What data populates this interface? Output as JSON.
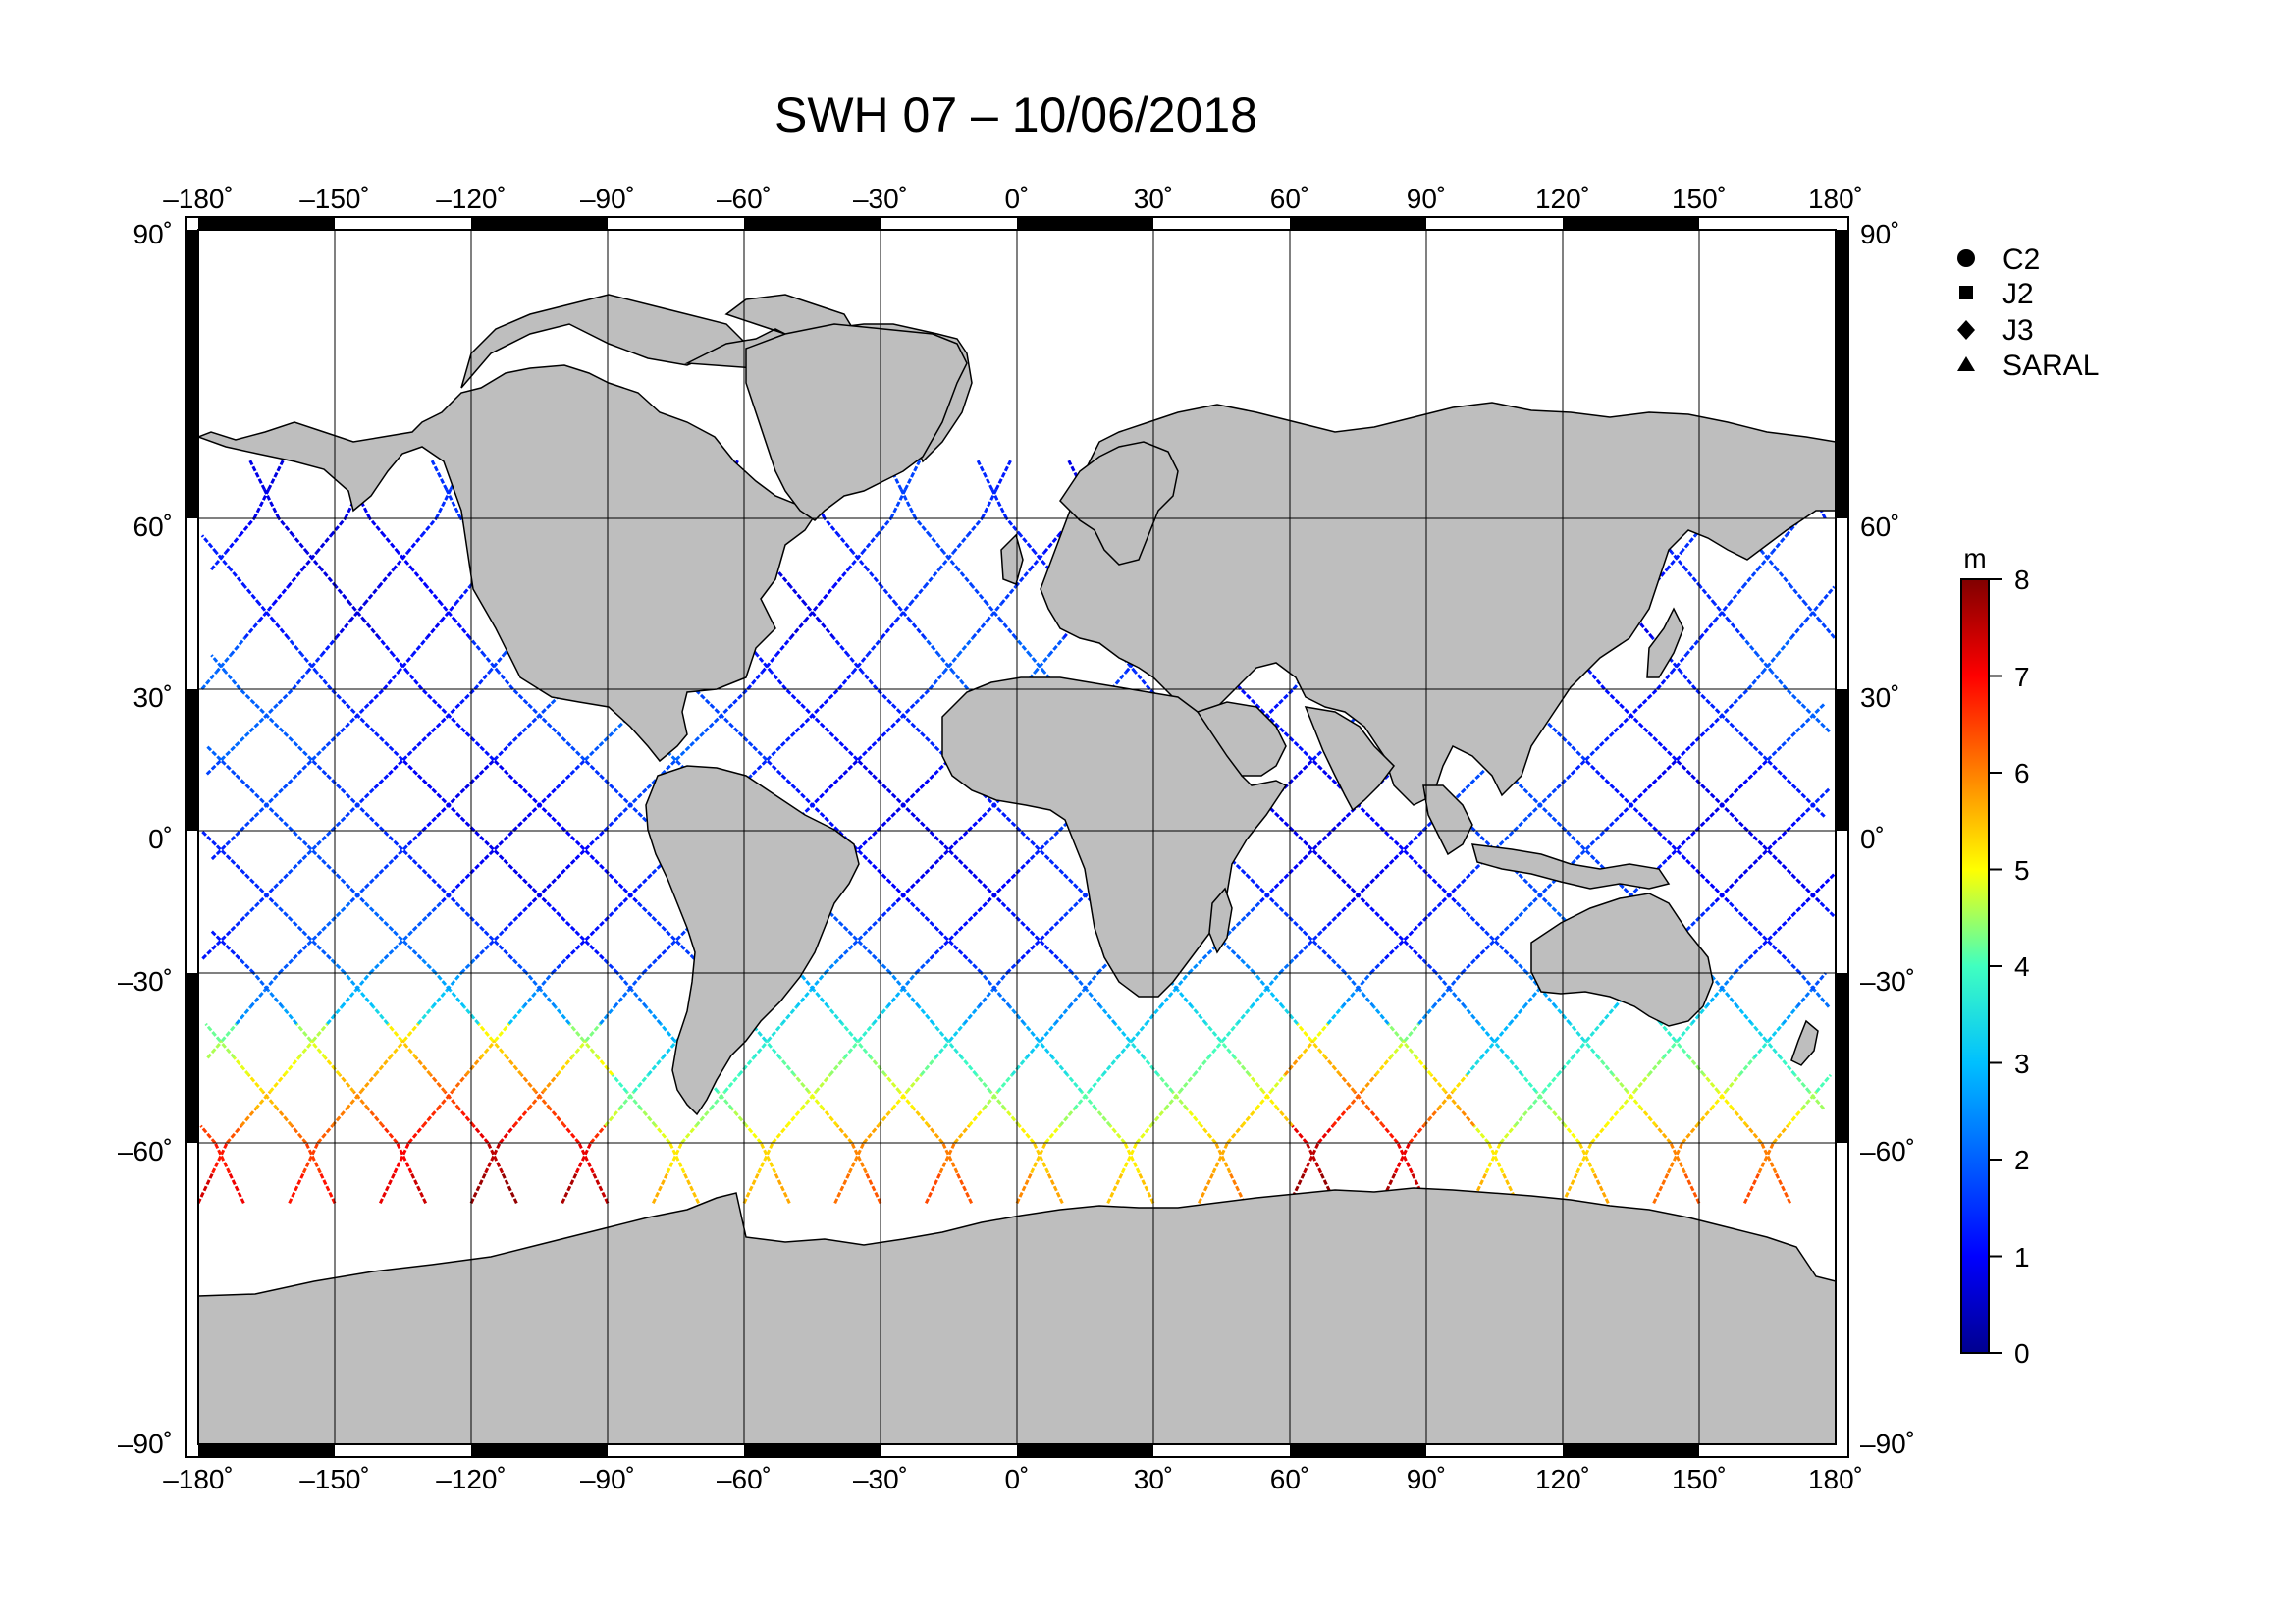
{
  "title": "SWH 07 – 10/06/2018",
  "map": {
    "lon_ticks": [
      "–180˚",
      "–150˚",
      "–120˚",
      "–90˚",
      "–60˚",
      "–30˚",
      "0˚",
      "30˚",
      "60˚",
      "90˚",
      "120˚",
      "150˚",
      "180˚"
    ],
    "lat_ticks_left": [
      "90˚",
      "60˚",
      "30˚",
      "0˚",
      "–30˚",
      "–60˚",
      "–90˚"
    ],
    "lat_ticks_right": [
      "90˚",
      "60˚",
      "30˚",
      "0˚",
      "–30˚",
      "–60˚",
      "–90˚"
    ],
    "land_color": "#bebebe",
    "grid_color": "#000000"
  },
  "legend": {
    "items": [
      {
        "label": "C2",
        "icon": "circle-icon"
      },
      {
        "label": "J2",
        "icon": "square-icon"
      },
      {
        "label": "J3",
        "icon": "diamond-icon"
      },
      {
        "label": "SARAL",
        "icon": "triangle-icon"
      }
    ]
  },
  "colorbar": {
    "unit": "m",
    "ticks": [
      "0",
      "1",
      "2",
      "3",
      "4",
      "5",
      "6",
      "7",
      "8"
    ],
    "min": 0,
    "max": 8,
    "colors": [
      "#00008f",
      "#0000ff",
      "#0080ff",
      "#00ffff",
      "#80ff80",
      "#ffff00",
      "#ff8000",
      "#ff0000",
      "#800000"
    ]
  }
}
